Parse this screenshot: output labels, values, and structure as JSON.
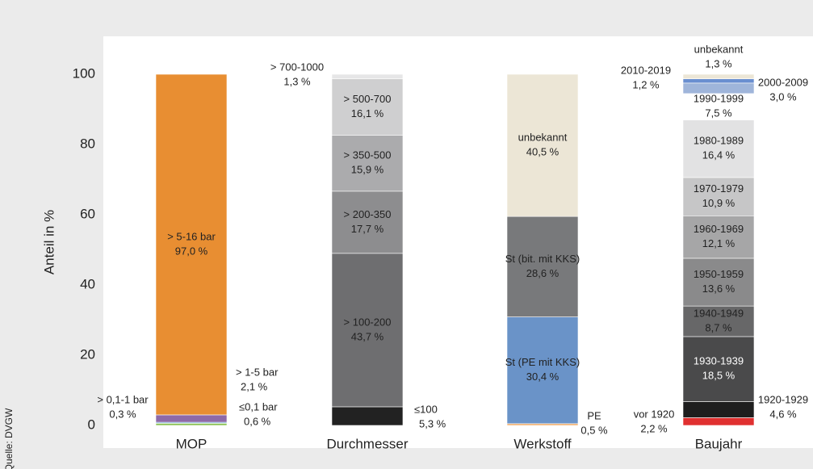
{
  "chart_data": {
    "type": "stacked-bar",
    "ylabel": "Anteil in %",
    "source": "Quelle: DVGW",
    "ylim": [
      0,
      100
    ],
    "yticks": [
      0,
      20,
      40,
      60,
      80,
      100
    ],
    "stacks": [
      {
        "category": "MOP",
        "labels": [
          "≤0,1 bar",
          "> 0,1-1 bar",
          "> 1-5 bar",
          "> 5-16 bar"
        ],
        "values": [
          0.6,
          0.3,
          2.1,
          97.0
        ],
        "value_labels": [
          "0,6 %",
          "0,3 %",
          "2,1 %",
          "97,0 %"
        ],
        "colors": [
          "#8cc152",
          "#5b9bd5",
          "#8e6aa8",
          "#e88e32"
        ]
      },
      {
        "category": "Durchmesser",
        "labels": [
          "≤100",
          "> 100-200",
          "> 200-350",
          "> 350-500",
          "> 500-700",
          "> 700-1000"
        ],
        "values": [
          5.3,
          43.7,
          17.7,
          15.9,
          16.1,
          1.3
        ],
        "value_labels": [
          "5,3 %",
          "43,7 %",
          "17,7 %",
          "15,9 %",
          "16,1 %",
          "1,3 %"
        ],
        "colors": [
          "#222222",
          "#6e6e70",
          "#8d8d8f",
          "#ababad",
          "#cfcfd0",
          "#e6e6e7"
        ]
      },
      {
        "category": "Werkstoff",
        "labels": [
          "PE",
          "St (PE mit KKS)",
          "St (bit. mit KKS)",
          "unbekannt"
        ],
        "values": [
          0.5,
          30.4,
          28.6,
          40.5
        ],
        "value_labels": [
          "0,5 %",
          "30,4 %",
          "28,6 %",
          "40,5 %"
        ],
        "colors": [
          "#f0a860",
          "#6a93c8",
          "#78797b",
          "#ece6d6"
        ]
      },
      {
        "category": "Baujahr",
        "labels": [
          "vor 1920",
          "1920-1929",
          "1930-1939",
          "1940-1949",
          "1950-1959",
          "1960-1969",
          "1970-1979",
          "1980-1989",
          "1990-1999",
          "2000-2009",
          "2010-2019",
          "unbekannt"
        ],
        "values": [
          2.2,
          4.6,
          18.5,
          8.7,
          13.6,
          12.1,
          10.9,
          16.4,
          7.5,
          3.0,
          1.2,
          1.3
        ],
        "value_labels": [
          "2,2 %",
          "4,6 %",
          "18,5 %",
          "8,7 %",
          "13,6 %",
          "12,1 %",
          "10,9 %",
          "16,4 %",
          "7,5 %",
          "3,0 %",
          "1,2 %",
          "1,3 %"
        ],
        "colors": [
          "#e03030",
          "#1e1e1e",
          "#4a4a4b",
          "#676768",
          "#8a8a8b",
          "#a6a6a7",
          "#c6c6c7",
          "#e2e2e3",
          "#ffffff",
          "#9fb5da",
          "#6a8fd0",
          "#ece6d6"
        ]
      }
    ]
  }
}
